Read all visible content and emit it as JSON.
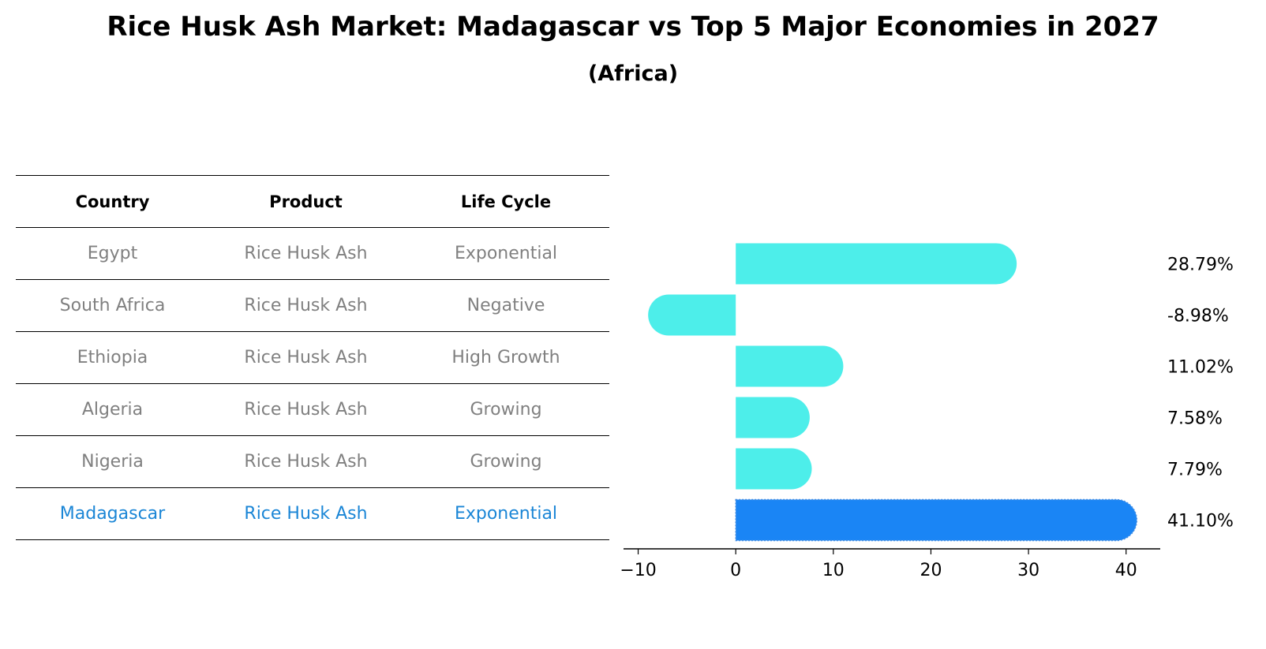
{
  "title": "Rice Husk Ash Market: Madagascar vs Top 5 Major Economies in 2027",
  "subtitle": "(Africa)",
  "table": {
    "headers": [
      "Country",
      "Product",
      "Life Cycle"
    ],
    "rows": [
      {
        "country": "Egypt",
        "product": "Rice Husk Ash",
        "life_cycle": "Exponential"
      },
      {
        "country": "South Africa",
        "product": "Rice Husk Ash",
        "life_cycle": "Negative"
      },
      {
        "country": "Ethiopia",
        "product": "Rice Husk Ash",
        "life_cycle": "High Growth"
      },
      {
        "country": "Algeria",
        "product": "Rice Husk Ash",
        "life_cycle": "Growing"
      },
      {
        "country": "Nigeria",
        "product": "Rice Husk Ash",
        "life_cycle": "Growing"
      },
      {
        "country": "Madagascar",
        "product": "Rice Husk Ash",
        "life_cycle": "Exponential"
      }
    ],
    "highlight_row": 5
  },
  "colors": {
    "bar": "#4deeea",
    "highlight_bar": "#1a85f5",
    "highlight_text": "#1b86d6",
    "muted_text": "#808080"
  },
  "chart_data": {
    "type": "bar",
    "orientation": "horizontal",
    "categories": [
      "Egypt",
      "South Africa",
      "Ethiopia",
      "Algeria",
      "Nigeria",
      "Madagascar"
    ],
    "values": [
      28.79,
      -8.98,
      11.02,
      7.58,
      7.79,
      41.1
    ],
    "value_labels": [
      "28.79%",
      "-8.98%",
      "11.02%",
      "7.58%",
      "7.79%",
      "41.10%"
    ],
    "highlight_index": 5,
    "xlim": [
      -11.5,
      43.5
    ],
    "xticks": [
      -10,
      0,
      10,
      20,
      30,
      40
    ],
    "xtick_labels": [
      "−10",
      "0",
      "10",
      "20",
      "30",
      "40"
    ],
    "grid": false
  }
}
